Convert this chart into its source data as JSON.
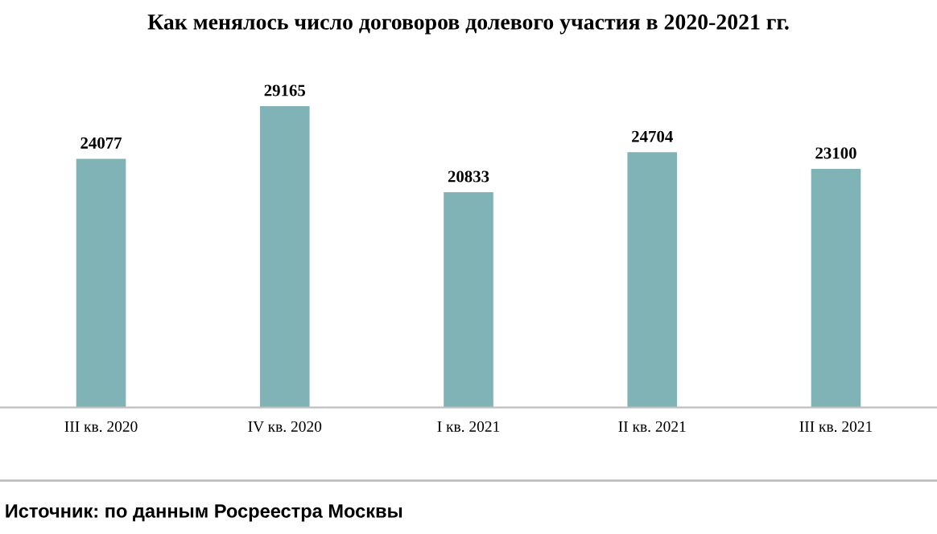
{
  "chart_data": {
    "type": "bar",
    "title": "Как менялось число договоров долевого участия в 2020-2021 гг.",
    "categories": [
      "III кв. 2020",
      "IV кв. 2020",
      "I кв. 2021",
      "II кв. 2021",
      "III кв. 2021"
    ],
    "values": [
      24077,
      29165,
      20833,
      24704,
      23100
    ],
    "color": "#7fb3b5",
    "data_labels": true,
    "grid": false,
    "annotations": [
      "Источник: по данным Росреестра Москвы"
    ]
  }
}
